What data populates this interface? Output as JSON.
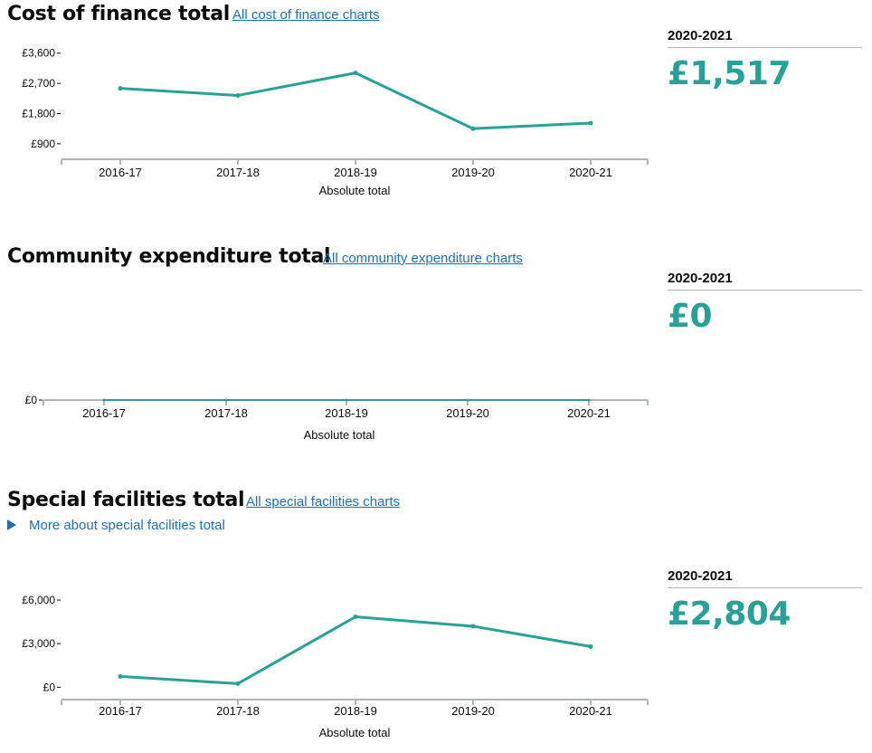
{
  "accent_color": "#28a197",
  "link_color": "#1d70b8",
  "sections": [
    {
      "title": "Cost of finance total",
      "link": "All cost of finance charts",
      "side_year": "2020-2021",
      "side_value": "£1,517"
    },
    {
      "title": "Community expenditure total",
      "link": "All community expenditure charts",
      "side_year": "2020-2021",
      "side_value": "£0"
    },
    {
      "title": "Special facilities total",
      "link": "All special facilities charts",
      "details": "More about special facilities total",
      "side_year": "2020-2021",
      "side_value": "£2,804"
    }
  ],
  "chart_data": [
    {
      "type": "line",
      "x": [
        "2016-17",
        "2017-18",
        "2018-19",
        "2019-20",
        "2020-21"
      ],
      "values": [
        2550,
        2340,
        3010,
        1350,
        1517
      ],
      "xlabel": "Absolute total",
      "yticks": [
        900,
        1800,
        2700,
        3600
      ],
      "ytick_labels": [
        "£900",
        "£1,800",
        "£2,700",
        "£3,600"
      ],
      "ylim": [
        600,
        3700
      ]
    },
    {
      "type": "line",
      "x": [
        "2016-17",
        "2017-18",
        "2018-19",
        "2019-20",
        "2020-21"
      ],
      "values": [
        0,
        0,
        0,
        0,
        0
      ],
      "xlabel": "Absolute total",
      "yticks": [
        0
      ],
      "ytick_labels": [
        "£0"
      ],
      "ylim": [
        0,
        1
      ]
    },
    {
      "type": "line",
      "x": [
        "2016-17",
        "2017-18",
        "2018-19",
        "2019-20",
        "2020-21"
      ],
      "values": [
        750,
        250,
        4850,
        4200,
        2804
      ],
      "xlabel": "Absolute total",
      "yticks": [
        0,
        3000,
        6000
      ],
      "ytick_labels": [
        "£0",
        "£3,000",
        "£6,000"
      ],
      "ylim": [
        -600,
        7000
      ]
    }
  ]
}
